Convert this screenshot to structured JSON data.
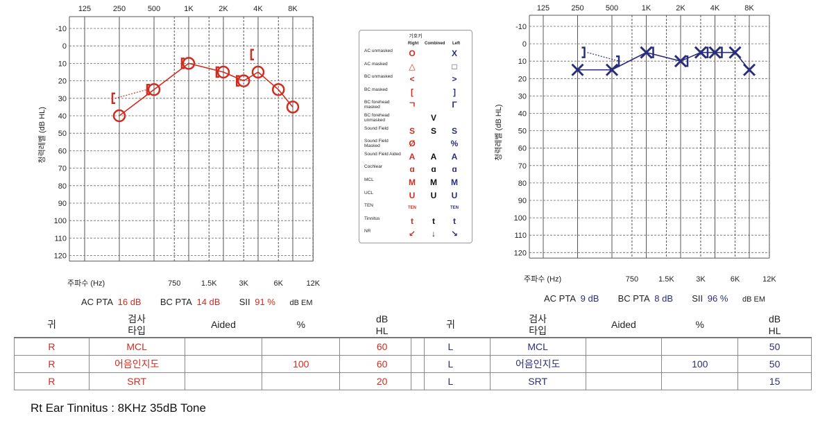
{
  "freq_top_labels": [
    "125",
    "250",
    "500",
    "1K",
    "2K",
    "4K",
    "8K"
  ],
  "freq_bottom_labels": [
    "750",
    "1.5K",
    "3K",
    "6K",
    "12K"
  ],
  "db_labels": [
    "-10",
    "0",
    "10",
    "20",
    "30",
    "40",
    "50",
    "60",
    "70",
    "80",
    "90",
    "100",
    "110",
    "120"
  ],
  "y_axis_label": "청력레벨 (dB HL)",
  "x_axis_label": "주파수 (Hz)",
  "right_ear": {
    "color": "#d22b1f",
    "ac_unmasked": [
      {
        "f": "250",
        "db": 40
      },
      {
        "f": "500",
        "db": 25
      },
      {
        "f": "1K",
        "db": 10
      },
      {
        "f": "2K",
        "db": 15
      },
      {
        "f": "3K",
        "db": 20
      },
      {
        "f": "4K",
        "db": 15
      },
      {
        "f": "6K",
        "db": 25
      },
      {
        "f": "8K",
        "db": 35
      }
    ],
    "bc_masked": [
      {
        "f": "250",
        "db": 30
      },
      {
        "f": "500",
        "db": 25
      },
      {
        "f": "1K",
        "db": 10
      },
      {
        "f": "2K",
        "db": 15
      },
      {
        "f": "3K",
        "db": 20
      },
      {
        "f": "4K",
        "db": 5
      }
    ],
    "pta": {
      "ac_label": "AC PTA",
      "ac": "16 dB",
      "bc_label": "BC PTA",
      "bc": "14 dB",
      "sii_label": "SII",
      "sii": "91 %",
      "unit": "dB EM"
    }
  },
  "left_ear": {
    "color": "#2a2d7a",
    "ac_unmasked": [
      {
        "f": "250",
        "db": 15
      },
      {
        "f": "500",
        "db": 15
      },
      {
        "f": "1K",
        "db": 5
      },
      {
        "f": "2K",
        "db": 10
      },
      {
        "f": "3K",
        "db": 5
      },
      {
        "f": "4K",
        "db": 5
      },
      {
        "f": "6K",
        "db": 5
      },
      {
        "f": "8K",
        "db": 15
      }
    ],
    "bc_masked": [
      {
        "f": "250",
        "db": 5
      },
      {
        "f": "500",
        "db": 10
      },
      {
        "f": "1K",
        "db": 5
      },
      {
        "f": "2K",
        "db": 10
      },
      {
        "f": "3K",
        "db": 5
      },
      {
        "f": "4K",
        "db": 5
      }
    ],
    "pta": {
      "ac_label": "AC PTA",
      "ac": "9 dB",
      "bc_label": "BC PTA",
      "bc": "8 dB",
      "sii_label": "SII",
      "sii": "96 %",
      "unit": "dB EM"
    }
  },
  "legend": {
    "title": "기호키",
    "headers": {
      "right": "Right",
      "combined": "Combined",
      "left": "Left"
    },
    "rows": [
      {
        "name": "AC unmasked",
        "r": "O",
        "c": "",
        "l": "X"
      },
      {
        "name": "AC masked",
        "r": "△",
        "c": "",
        "l": "□"
      },
      {
        "name": "BC unmasked",
        "r": "<",
        "c": "",
        "l": ">"
      },
      {
        "name": "BC masked",
        "r": "[",
        "c": "",
        "l": "]"
      },
      {
        "name": "BC forehead masked",
        "r": "ㄱ",
        "c": "",
        "l": "Γ"
      },
      {
        "name": "BC forehead unmasked",
        "r": "",
        "c": "V",
        "l": ""
      },
      {
        "name": "Sound Field",
        "r": "S",
        "c": "S",
        "l": "S"
      },
      {
        "name": "Sound Field Masked",
        "r": "Ø",
        "c": "",
        "l": "%"
      },
      {
        "name": "Sound Field Aided",
        "r": "A",
        "c": "A",
        "l": "A"
      },
      {
        "name": "Cochlear",
        "r": "ɑ",
        "c": "ɑ",
        "l": "ɑ"
      },
      {
        "name": "MCL",
        "r": "M",
        "c": "M",
        "l": "M"
      },
      {
        "name": "UCL",
        "r": "U",
        "c": "U",
        "l": "U"
      },
      {
        "name": "TEN",
        "r": "TEN",
        "c": "",
        "l": "TEN"
      },
      {
        "name": "Tinnitus",
        "r": "t",
        "c": "t",
        "l": "t"
      },
      {
        "name": "NR",
        "r": "↙",
        "c": "↓",
        "l": "↘"
      }
    ]
  },
  "table_headers": {
    "ear": "귀",
    "type_line1": "검사",
    "type_line2": "타입",
    "aided": "Aided",
    "percent": "%",
    "db_line1": "dB",
    "db_line2": "HL"
  },
  "table_right": [
    {
      "ear": "R",
      "type": "MCL",
      "aided": "",
      "pct": "",
      "db": "60"
    },
    {
      "ear": "R",
      "type": "어음인지도",
      "aided": "",
      "pct": "100",
      "db": "60"
    },
    {
      "ear": "R",
      "type": "SRT",
      "aided": "",
      "pct": "",
      "db": "20"
    }
  ],
  "table_left": [
    {
      "ear": "L",
      "type": "MCL",
      "aided": "",
      "pct": "",
      "db": "50"
    },
    {
      "ear": "L",
      "type": "어음인지도",
      "aided": "",
      "pct": "100",
      "db": "50"
    },
    {
      "ear": "L",
      "type": "SRT",
      "aided": "",
      "pct": "",
      "db": "15"
    }
  ],
  "note": "Rt Ear Tinnitus : 8KHz 35dB Tone"
}
